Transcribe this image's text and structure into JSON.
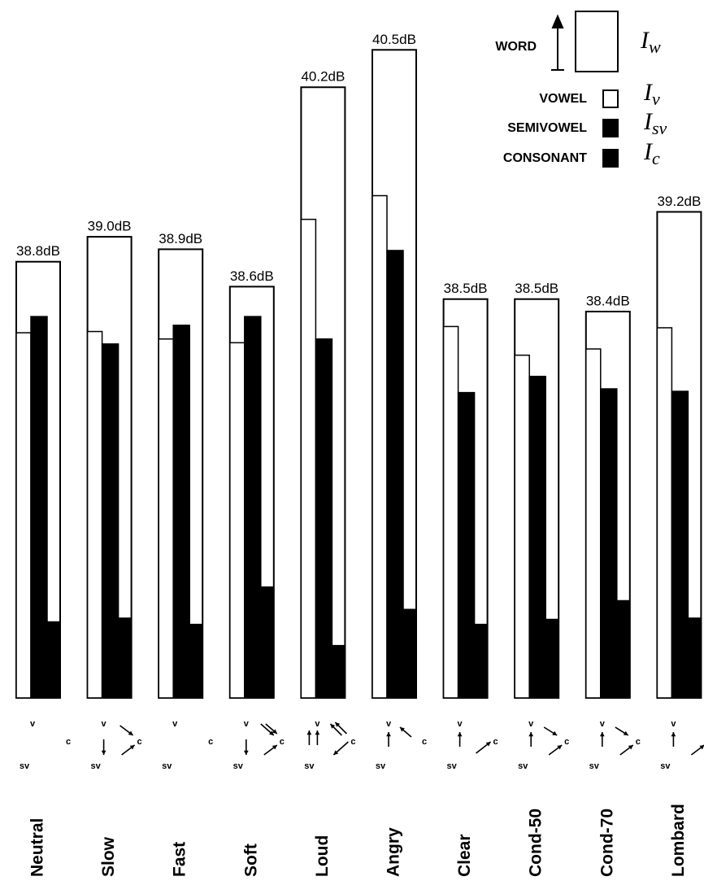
{
  "chart_data": {
    "type": "bar",
    "categories": [
      "Neutral",
      "Slow",
      "Fast",
      "Soft",
      "Loud",
      "Angry",
      "Clear",
      "Cond-50",
      "Cond-70",
      "Lombard"
    ],
    "series": [
      {
        "name": "WORD",
        "symbol": "I",
        "subscript": "w",
        "color": "#ffffff",
        "values": [
          38.8,
          39.0,
          38.9,
          38.6,
          40.2,
          40.5,
          38.5,
          38.5,
          38.4,
          39.2
        ],
        "value_labels": [
          "38.8dB",
          "39.0dB",
          "38.9dB",
          "38.6dB",
          "40.2dB",
          "40.5dB",
          "38.5dB",
          "38.5dB",
          "38.4dB",
          "39.2dB"
        ]
      },
      {
        "name": "VOWEL",
        "symbol": "I",
        "subscript": "v",
        "color": "#ffffff",
        "values": [
          38.23,
          38.24,
          38.18,
          38.15,
          39.14,
          39.33,
          38.28,
          38.05,
          38.1,
          38.27
        ]
      },
      {
        "name": "SEMIVOWEL",
        "symbol": "I",
        "subscript": "sv",
        "color": "#000000",
        "values": [
          38.36,
          38.14,
          38.29,
          38.36,
          38.18,
          38.89,
          37.75,
          37.88,
          37.78,
          37.76
        ]
      },
      {
        "name": "CONSONANT",
        "symbol": "I",
        "subscript": "c",
        "color": "#000000",
        "values": [
          35.91,
          35.94,
          35.89,
          36.19,
          35.72,
          36.01,
          35.89,
          35.93,
          36.08,
          35.94
        ]
      }
    ],
    "ylim": [
      35.3,
      40.9
    ],
    "diagram_labels": [
      "v",
      "sv",
      "c"
    ]
  }
}
